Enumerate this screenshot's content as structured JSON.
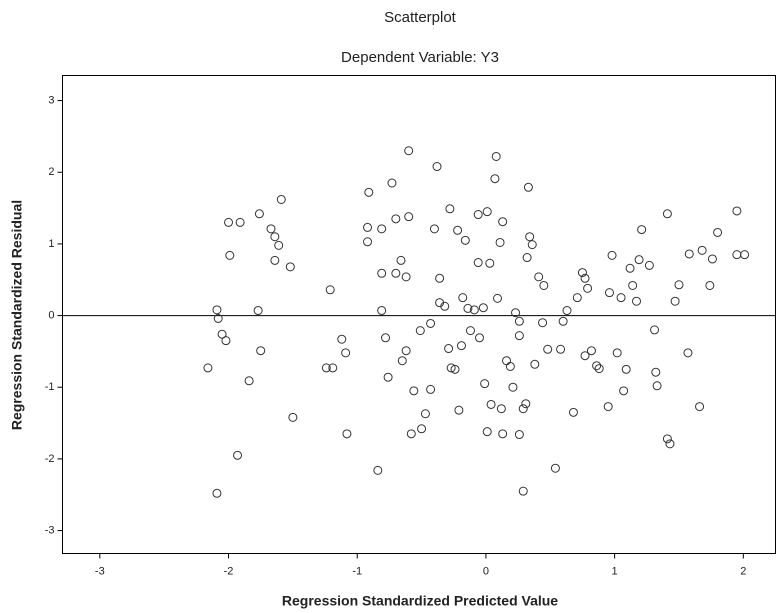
{
  "chart_data": {
    "type": "scatter",
    "title": "Scatterplot",
    "subtitle": "Dependent Variable: Y3",
    "x_label": "Regression Standardized Predicted Value",
    "y_label": "Regression Standardized Residual",
    "xlim": [
      -3.29,
      2.25
    ],
    "ylim": [
      -3.32,
      3.35
    ],
    "xticks": [
      -3,
      -2,
      -1,
      0,
      1,
      2
    ],
    "yticks": [
      -3,
      -2,
      -1,
      0,
      1,
      2,
      3
    ],
    "reference_line": 0,
    "grid": false,
    "series": [
      {
        "color": "#333333",
        "x": [
          -2.16,
          -2.08,
          -2.09,
          -1.99,
          -2.05,
          -2.02,
          -2.0,
          -1.91,
          -1.93,
          -1.84,
          -2.09,
          -1.77,
          -1.76,
          -1.75,
          -1.67,
          -1.64,
          -1.61,
          -1.59,
          -1.64,
          -1.52,
          -1.5,
          -1.21,
          -1.24,
          -1.19,
          -1.12,
          -1.09,
          -1.08,
          -0.91,
          -0.92,
          -0.92,
          -0.84,
          -0.81,
          -0.81,
          -0.81,
          -0.78,
          -0.76,
          -0.73,
          -0.7,
          -0.7,
          -0.66,
          -0.62,
          -0.65,
          -0.6,
          -0.6,
          -0.62,
          -0.58,
          -0.56,
          -0.51,
          -0.5,
          -0.47,
          -0.43,
          -0.4,
          -0.43,
          -0.38,
          -0.36,
          -0.36,
          -0.32,
          -0.29,
          -0.28,
          -0.27,
          -0.24,
          -0.22,
          -0.21,
          -0.19,
          -0.18,
          -0.16,
          -0.14,
          -0.12,
          -0.09,
          -0.06,
          -0.06,
          -0.05,
          -0.02,
          -0.01,
          0.01,
          0.01,
          0.03,
          0.04,
          0.07,
          0.08,
          0.09,
          0.11,
          0.12,
          0.13,
          0.13,
          0.16,
          0.19,
          0.21,
          0.23,
          0.26,
          0.26,
          0.26,
          0.29,
          0.29,
          0.31,
          0.32,
          0.33,
          0.34,
          0.36,
          0.38,
          0.41,
          0.44,
          0.45,
          0.48,
          0.54,
          0.58,
          0.6,
          0.63,
          0.68,
          0.71,
          0.75,
          0.77,
          0.77,
          0.79,
          0.82,
          0.86,
          0.88,
          0.95,
          0.96,
          0.98,
          1.02,
          1.05,
          1.07,
          1.09,
          1.12,
          1.14,
          1.17,
          1.19,
          1.21,
          1.27,
          1.31,
          1.32,
          1.33,
          1.41,
          1.43,
          1.41,
          1.47,
          1.5,
          1.57,
          1.58,
          1.66,
          1.68,
          1.74,
          1.76,
          1.8,
          1.95,
          1.95,
          2.01
        ],
        "values": [
          -0.73,
          -0.04,
          0.08,
          0.84,
          -0.26,
          -0.35,
          1.3,
          1.3,
          -1.95,
          -0.91,
          -2.48,
          0.07,
          1.42,
          -0.49,
          1.21,
          1.1,
          0.98,
          1.62,
          0.77,
          0.68,
          -1.42,
          0.36,
          -0.73,
          -0.73,
          -0.33,
          -0.52,
          -1.65,
          1.72,
          1.03,
          1.23,
          -2.16,
          1.21,
          0.59,
          0.07,
          -0.31,
          -0.86,
          1.85,
          1.35,
          0.59,
          0.77,
          0.54,
          -0.63,
          1.38,
          2.3,
          -0.49,
          -1.65,
          -1.05,
          -0.21,
          -1.58,
          -1.37,
          -1.03,
          1.21,
          -0.11,
          2.08,
          0.52,
          0.18,
          0.13,
          -0.46,
          1.49,
          -0.73,
          -0.75,
          1.19,
          -1.32,
          -0.42,
          0.25,
          1.05,
          0.1,
          -0.21,
          0.08,
          1.41,
          0.74,
          -0.31,
          0.11,
          -0.95,
          -1.62,
          1.45,
          0.73,
          -1.24,
          1.91,
          2.22,
          0.24,
          1.02,
          -1.3,
          1.31,
          -1.65,
          -0.63,
          -0.71,
          -1.0,
          0.04,
          -1.66,
          -0.08,
          -0.28,
          -1.3,
          -2.45,
          -1.23,
          0.81,
          1.79,
          1.1,
          0.99,
          -0.68,
          0.54,
          -0.1,
          0.42,
          -0.47,
          -2.13,
          -0.47,
          -0.08,
          0.07,
          -1.35,
          0.25,
          0.6,
          0.52,
          -0.56,
          0.38,
          -0.49,
          -0.7,
          -0.74,
          -1.27,
          0.32,
          0.84,
          -0.52,
          0.25,
          -1.05,
          -0.75,
          0.66,
          0.42,
          0.2,
          0.78,
          1.2,
          0.7,
          -0.2,
          -0.79,
          -0.98,
          -1.72,
          -1.79,
          1.42,
          0.2,
          0.43,
          -0.52,
          0.86,
          -1.27,
          0.91,
          0.42,
          0.79,
          1.16,
          1.46,
          0.85,
          0.85
        ]
      }
    ]
  }
}
